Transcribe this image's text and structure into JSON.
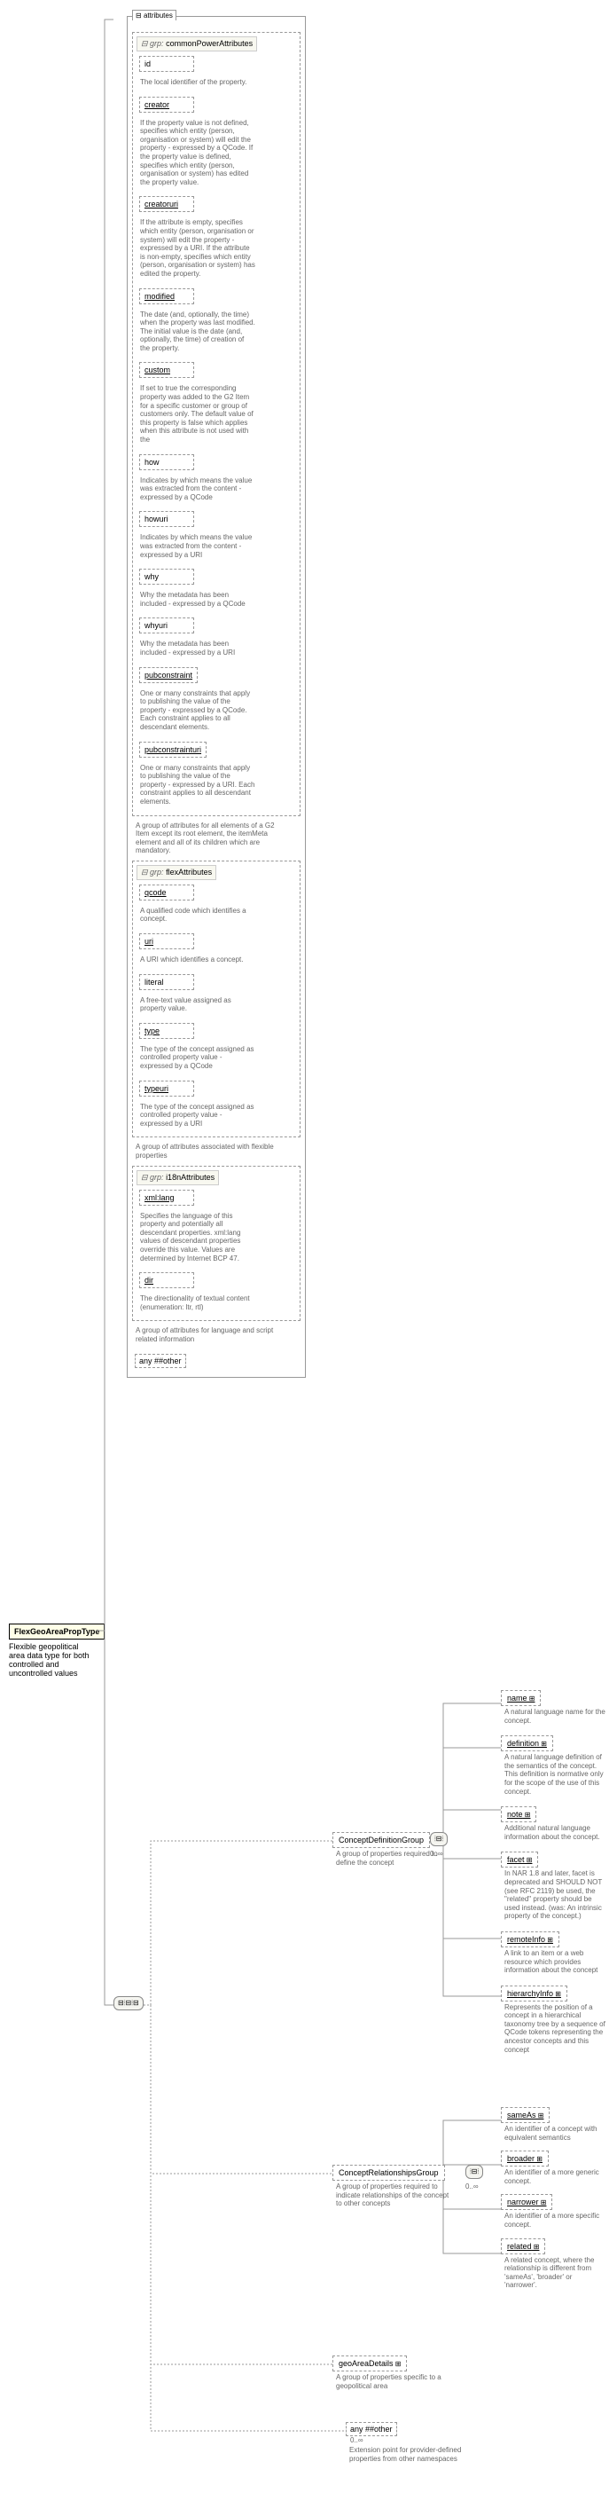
{
  "root": {
    "name": "FlexGeoAreaPropType",
    "desc": "Flexible geopolitical area data type for both controlled and uncontrolled values"
  },
  "attrContainer": "attributes",
  "groups": {
    "cpa": {
      "title": "commonPowerAttributes",
      "fields": [
        {
          "name": "id",
          "desc": "The local identifier of the property."
        },
        {
          "name": "creator",
          "desc": "If the property value is not defined, specifies which entity (person, organisation or system) will edit the property - expressed by a QCode. If the property value is defined, specifies which entity (person, organisation or system) has edited the property value."
        },
        {
          "name": "creatoruri",
          "desc": "If the attribute is empty, specifies which entity (person, organisation or system) will edit the property - expressed by a URI. If the attribute is non-empty, specifies which entity (person, organisation or system) has edited the property."
        },
        {
          "name": "modified",
          "desc": "The date (and, optionally, the time) when the property was last modified. The initial value is the date (and, optionally, the time) of creation of the property."
        },
        {
          "name": "custom",
          "desc": "If set to true the corresponding property was added to the G2 Item for a specific customer or group of customers only. The default value of this property is false which applies when this attribute is not used with the"
        },
        {
          "name": "how",
          "desc": "Indicates by which means the value was extracted from the content - expressed by a QCode"
        },
        {
          "name": "howuri",
          "desc": "Indicates by which means the value was extracted from the content - expressed by a URI"
        },
        {
          "name": "why",
          "desc": "Why the metadata has been included - expressed by a QCode"
        },
        {
          "name": "whyuri",
          "desc": "Why the metadata has been included - expressed by a URI"
        },
        {
          "name": "pubconstraint",
          "desc": "One or many constraints that apply to publishing the value of the property - expressed by a QCode. Each constraint applies to all descendant elements."
        },
        {
          "name": "pubconstrainturi",
          "desc": "One or many constraints that apply to publishing the value of the property - expressed by a URI. Each constraint applies to all descendant elements."
        }
      ],
      "footer": "A group of attributes for all elements of a G2 Item except its root element, the itemMeta element and all of its children which are mandatory."
    },
    "flex": {
      "title": "flexAttributes",
      "fields": [
        {
          "name": "qcode",
          "desc": "A qualified code which identifies a concept."
        },
        {
          "name": "uri",
          "desc": "A URI which identifies a concept."
        },
        {
          "name": "literal",
          "desc": "A free-text value assigned as property value."
        },
        {
          "name": "type",
          "desc": "The type of the concept assigned as controlled property value - expressed by a QCode"
        },
        {
          "name": "typeuri",
          "desc": "The type of the concept assigned as controlled property value - expressed by a URI"
        }
      ],
      "footer": "A group of attributes associated with flexible properties"
    },
    "i18n": {
      "title": "i18nAttributes",
      "fields": [
        {
          "name": "xml:lang",
          "desc": "Specifies the language of this property and potentially all descendant properties. xml:lang values of descendant properties override this value. Values are determined by Internet BCP 47."
        },
        {
          "name": "dir",
          "desc": "The directionality of textual content (enumeration: ltr, rtl)"
        }
      ],
      "footer": "A group of attributes for language and script related information"
    },
    "anyOther": "any ##other"
  },
  "cdg": {
    "title": "ConceptDefinitionGroup",
    "desc": "A group of properties required to define the concept",
    "occur": "0..∞",
    "children": [
      {
        "name": "name",
        "desc": "A natural language name for the concept."
      },
      {
        "name": "definition",
        "desc": "A natural language definition of the semantics of the concept. This definition is normative only for the scope of the use of this concept."
      },
      {
        "name": "note",
        "desc": "Additional natural language information about the concept."
      },
      {
        "name": "facet",
        "desc": "In NAR 1.8 and later, facet is deprecated and SHOULD NOT (see RFC 2119) be used, the \"related\" property should be used instead. (was: An intrinsic property of the concept.)"
      },
      {
        "name": "remoteInfo",
        "desc": "A link to an item or a web resource which provides information about the concept"
      },
      {
        "name": "hierarchyInfo",
        "desc": "Represents the position of a concept in a hierarchical taxonomy tree by a sequence of QCode tokens representing the ancestor concepts and this concept"
      }
    ]
  },
  "crg": {
    "title": "ConceptRelationshipsGroup",
    "desc": "A group of properties required to indicate relationships of the concept to other concepts",
    "occur": "0..∞",
    "children": [
      {
        "name": "sameAs",
        "desc": "An identifier of a concept with equivalent semantics"
      },
      {
        "name": "broader",
        "desc": "An identifier of a more generic concept."
      },
      {
        "name": "narrower",
        "desc": "An identifier of a more specific concept."
      },
      {
        "name": "related",
        "desc": "A related concept, where the relationship is different from 'sameAs', 'broader' or 'narrower'."
      }
    ]
  },
  "gad": {
    "title": "geoAreaDetails",
    "desc": "A group of properties specific to a geopolitical area"
  },
  "anyBlock": {
    "label": "any ##other",
    "occur": "0..∞",
    "desc": "Extension point for provider-defined properties from other namespaces"
  }
}
